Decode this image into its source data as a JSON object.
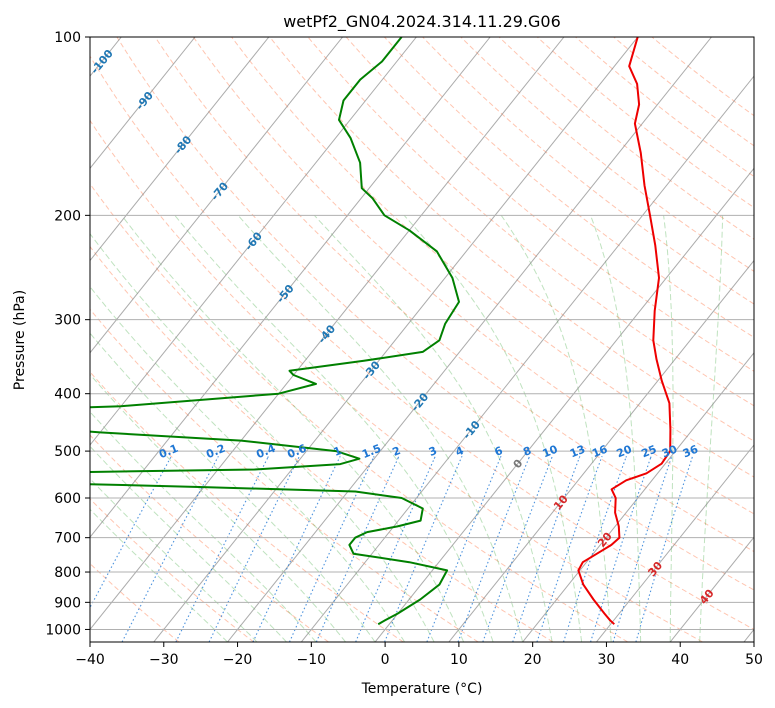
{
  "chart_data": {
    "type": "line",
    "subtype": "skew-t log-p diagram",
    "title": "wetPf2_GN04.2024.314.11.29.G06",
    "xlabel": "Temperature (°C)",
    "ylabel": "Pressure (hPa)",
    "xlim": [
      -40,
      50
    ],
    "ylim": [
      1050,
      100
    ],
    "y_scale": "log",
    "grid": true,
    "x_ticks": [
      -40,
      -30,
      -20,
      -10,
      0,
      10,
      20,
      30,
      40,
      50
    ],
    "x_tick_labels": [
      "−40",
      "−30",
      "−20",
      "−10",
      "0",
      "10",
      "20",
      "30",
      "40",
      "50"
    ],
    "y_ticks": [
      1000,
      900,
      800,
      700,
      600,
      500,
      400,
      300,
      200,
      100
    ],
    "y_tick_labels": [
      "1000",
      "900",
      "800",
      "700",
      "600",
      "500",
      "400",
      "300",
      "200",
      "100"
    ],
    "isotherm_labels": [
      {
        "text": "-100",
        "t": -100,
        "p": 110
      },
      {
        "text": "-90",
        "t": -90,
        "p": 128
      },
      {
        "text": "-80",
        "t": -80,
        "p": 152
      },
      {
        "text": "-70",
        "t": -70,
        "p": 182
      },
      {
        "text": "-60",
        "t": -60,
        "p": 221
      },
      {
        "text": "-50",
        "t": -50,
        "p": 271
      },
      {
        "text": "-40",
        "t": -40,
        "p": 317
      },
      {
        "text": "-30",
        "t": -30,
        "p": 365
      },
      {
        "text": "-20",
        "t": -20,
        "p": 413
      },
      {
        "text": "-10",
        "t": -10,
        "p": 460
      },
      {
        "text": "0",
        "t": 0,
        "p": 525
      },
      {
        "text": "10",
        "t": 10,
        "p": 610
      },
      {
        "text": "20",
        "t": 20,
        "p": 705
      },
      {
        "text": "30",
        "t": 30,
        "p": 790
      },
      {
        "text": "40",
        "t": 40,
        "p": 880
      }
    ],
    "mixing_ratio_labels": [
      "0.1",
      "0.2",
      "0.4",
      "0.6",
      "1",
      "1.5",
      "2",
      "3",
      "4",
      "6",
      "8",
      "10",
      "13",
      "16",
      "20",
      "25",
      "30",
      "36"
    ],
    "series": [
      {
        "name": "",
        "color": "#ee0000",
        "points": [
          [
            30.5,
            980
          ],
          [
            29.5,
            965
          ],
          [
            28,
            940
          ],
          [
            25,
            890
          ],
          [
            22,
            840
          ],
          [
            19.8,
            795
          ],
          [
            19.5,
            770
          ],
          [
            20.5,
            745
          ],
          [
            21.5,
            720
          ],
          [
            21.8,
            700
          ],
          [
            20.5,
            670
          ],
          [
            18.5,
            635
          ],
          [
            17.0,
            600
          ],
          [
            15.5,
            580
          ],
          [
            16.5,
            560
          ],
          [
            18.5,
            545
          ],
          [
            19.5,
            525
          ],
          [
            19.3,
            500
          ],
          [
            17.0,
            460
          ],
          [
            14.0,
            415
          ],
          [
            10.5,
            380
          ],
          [
            7.5,
            350
          ],
          [
            5.0,
            325
          ],
          [
            2.0,
            290
          ],
          [
            -1.0,
            255
          ],
          [
            -5.0,
            225
          ],
          [
            -9.0,
            200
          ],
          [
            -13.0,
            178
          ],
          [
            -17.0,
            157
          ],
          [
            -21.0,
            140
          ],
          [
            -22.5,
            130
          ],
          [
            -25.0,
            120
          ],
          [
            -28.0,
            112
          ],
          [
            -30.0,
            100
          ]
        ]
      },
      {
        "name": "",
        "color": "#008000",
        "points": [
          [
            -1.5,
            980
          ],
          [
            -1.0,
            965
          ],
          [
            0.0,
            940
          ],
          [
            1.5,
            890
          ],
          [
            2.5,
            840
          ],
          [
            2.0,
            795
          ],
          [
            -4.0,
            770
          ],
          [
            -12.5,
            745
          ],
          [
            -14.0,
            720
          ],
          [
            -14.0,
            700
          ],
          [
            -13.0,
            685
          ],
          [
            -9.5,
            670
          ],
          [
            -7.0,
            655
          ],
          [
            -8.0,
            625
          ],
          [
            -12.0,
            600
          ],
          [
            -19.0,
            585
          ],
          [
            -40.0,
            575
          ],
          [
            -65.0,
            565
          ],
          [
            -100.0,
            555
          ],
          [
            -100.0,
            548
          ],
          [
            -60.0,
            543
          ],
          [
            -35.0,
            537
          ],
          [
            -24.0,
            526
          ],
          [
            -22.0,
            515
          ],
          [
            -26.0,
            500
          ],
          [
            -40.0,
            480
          ],
          [
            -60.0,
            465
          ],
          [
            -75.0,
            450
          ],
          [
            -88.0,
            445
          ],
          [
            -95.0,
            438
          ],
          [
            -90.0,
            432
          ],
          [
            -80.0,
            428
          ],
          [
            -60.0,
            420
          ],
          [
            -40.0,
            400
          ],
          [
            -36.0,
            385
          ],
          [
            -40.0,
            372
          ],
          [
            -41.0,
            366
          ],
          [
            -32.0,
            352
          ],
          [
            -25.0,
            340
          ],
          [
            -24.0,
            325
          ],
          [
            -25.0,
            305
          ],
          [
            -25.5,
            280
          ],
          [
            -29.0,
            255
          ],
          [
            -34.0,
            230
          ],
          [
            -40.0,
            212
          ],
          [
            -45.0,
            200
          ],
          [
            -48.5,
            187
          ],
          [
            -51.0,
            180
          ],
          [
            -54.0,
            163
          ],
          [
            -58.0,
            148
          ],
          [
            -61.5,
            138
          ],
          [
            -63.0,
            128
          ],
          [
            -63.0,
            118
          ],
          [
            -62.0,
            110
          ],
          [
            -62.0,
            100
          ]
        ]
      }
    ]
  }
}
